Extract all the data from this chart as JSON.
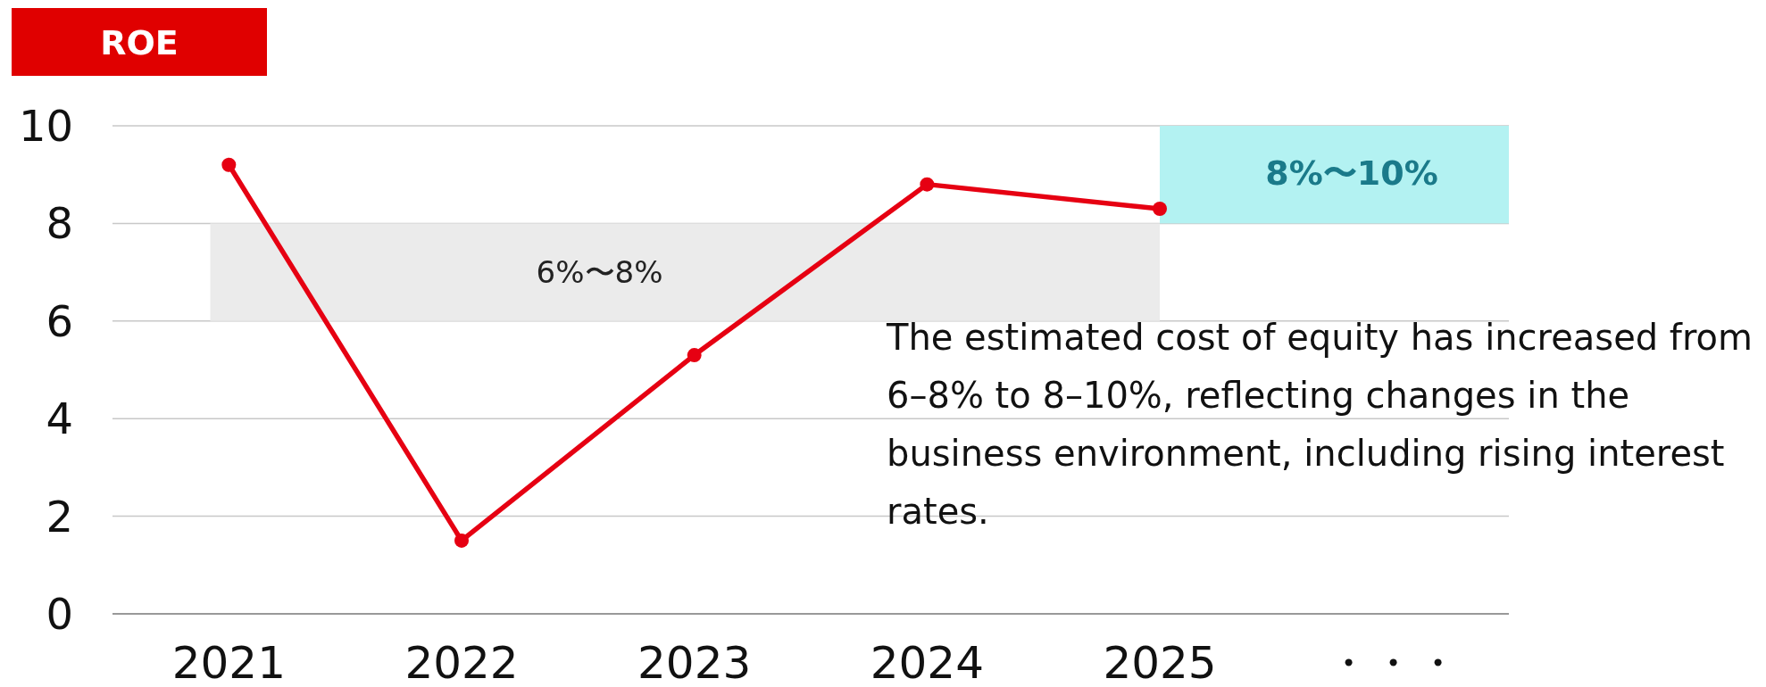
{
  "chart_data": {
    "type": "line",
    "title": "ROE",
    "categories": [
      "2021",
      "2022",
      "2023",
      "2024",
      "2025",
      "・・・"
    ],
    "series": [
      {
        "color": "#e60012",
        "values": [
          9.2,
          1.5,
          5.3,
          8.8,
          8.3,
          null
        ]
      }
    ],
    "marker": "circle",
    "ylim": [
      0,
      10
    ],
    "yticks": [
      0,
      2,
      4,
      6,
      8,
      10
    ],
    "grid": "y",
    "bands": [
      {
        "axis": "y",
        "from": 6,
        "to": 8,
        "label": "6%〜8%",
        "color": "#ebebeb"
      },
      {
        "axis": "y",
        "from": 8,
        "to": 10,
        "label": "8%〜10%",
        "color": "#b3f2f2"
      }
    ],
    "annotations": [
      "The estimated cost of equity has increased from 6–8% to 8–10%, reflecting changes in the business environment, including rising interest rates."
    ]
  }
}
